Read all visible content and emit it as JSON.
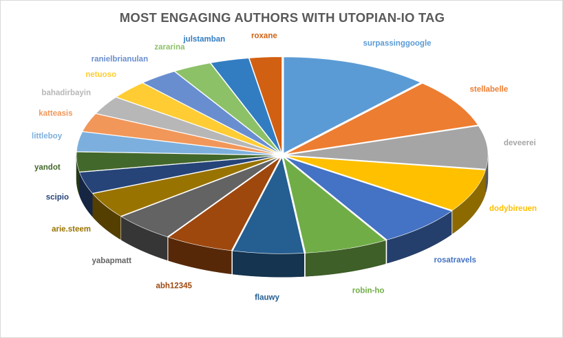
{
  "chart_data": {
    "type": "pie",
    "style": "3d-exploded",
    "title": "MOST ENGAGING AUTHORS WITH UTOPIAN-IO TAG",
    "legend": "none",
    "slices": [
      {
        "label": "surpassinggoogle",
        "value": 11.5,
        "color": "#5B9BD5"
      },
      {
        "label": "stellabelle",
        "value": 8.0,
        "color": "#ED7D31"
      },
      {
        "label": "deveerei",
        "value": 7.0,
        "color": "#A5A5A5"
      },
      {
        "label": "dodybireuen",
        "value": 7.0,
        "color": "#FFC000"
      },
      {
        "label": "rosatravels",
        "value": 6.8,
        "color": "#4472C4"
      },
      {
        "label": "robin-ho",
        "value": 6.5,
        "color": "#70AD47"
      },
      {
        "label": "flauwy",
        "value": 5.5,
        "color": "#255E91"
      },
      {
        "label": "abh12345",
        "value": 5.3,
        "color": "#9E480E"
      },
      {
        "label": "yabapmatt",
        "value": 4.8,
        "color": "#636363"
      },
      {
        "label": "arie.steem",
        "value": 4.2,
        "color": "#997300"
      },
      {
        "label": "scipio",
        "value": 3.5,
        "color": "#264478"
      },
      {
        "label": "yandot",
        "value": 3.2,
        "color": "#43682B"
      },
      {
        "label": "littleboy",
        "value": 3.2,
        "color": "#7CAFDD"
      },
      {
        "label": "katteasis",
        "value": 3.0,
        "color": "#F1975A"
      },
      {
        "label": "bahadirbayin",
        "value": 3.0,
        "color": "#B7B7B7"
      },
      {
        "label": "netuoso",
        "value": 3.0,
        "color": "#FFCD33"
      },
      {
        "label": "ranielbrianulan",
        "value": 3.0,
        "color": "#698ED0"
      },
      {
        "label": "zararina",
        "value": 3.0,
        "color": "#8CC168"
      },
      {
        "label": "julstamban",
        "value": 3.0,
        "color": "#327DC2"
      },
      {
        "label": "roxane",
        "value": 2.5,
        "color": "#D26012"
      }
    ]
  }
}
